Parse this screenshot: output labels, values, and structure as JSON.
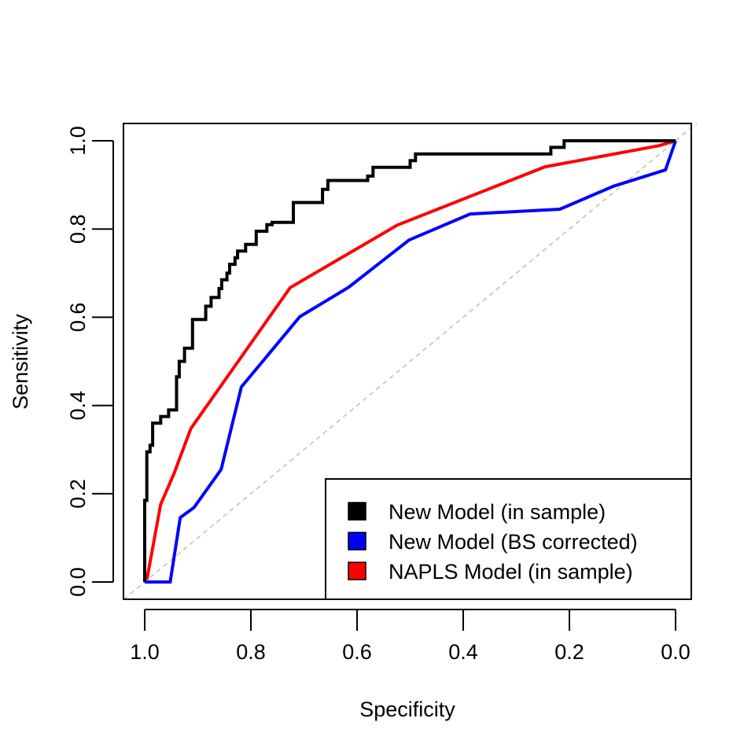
{
  "chart_data": {
    "type": "line",
    "title": "",
    "xlabel": "Specificity",
    "ylabel": "Sensitivity",
    "xlim": [
      1.0,
      0.0
    ],
    "ylim": [
      0.0,
      1.0
    ],
    "x_ticks": [
      "1.0",
      "0.8",
      "0.6",
      "0.4",
      "0.2",
      "0.0"
    ],
    "x_tick_values": [
      1.0,
      0.8,
      0.6,
      0.4,
      0.2,
      0.0
    ],
    "y_ticks": [
      "0.0",
      "0.2",
      "0.4",
      "0.6",
      "0.8",
      "1.0"
    ],
    "y_tick_values": [
      0.0,
      0.2,
      0.4,
      0.6,
      0.8,
      1.0
    ],
    "reference_line": {
      "from": [
        1.0,
        0.0
      ],
      "to": [
        0.0,
        1.0
      ],
      "color": "#bebebe",
      "style": "dashed"
    },
    "legend_position": "bottom-right",
    "series": [
      {
        "name": "New Model (in sample)",
        "color": "#000000",
        "step": true,
        "specificity": [
          1.0,
          1.0,
          0.996,
          0.996,
          0.99,
          0.99,
          0.985,
          0.985,
          0.97,
          0.97,
          0.955,
          0.955,
          0.94,
          0.94,
          0.935,
          0.935,
          0.925,
          0.925,
          0.91,
          0.91,
          0.885,
          0.885,
          0.875,
          0.875,
          0.86,
          0.86,
          0.855,
          0.855,
          0.845,
          0.845,
          0.84,
          0.84,
          0.83,
          0.83,
          0.825,
          0.825,
          0.81,
          0.81,
          0.79,
          0.79,
          0.77,
          0.77,
          0.76,
          0.76,
          0.72,
          0.72,
          0.665,
          0.665,
          0.655,
          0.655,
          0.58,
          0.58,
          0.57,
          0.57,
          0.5,
          0.5,
          0.49,
          0.49,
          0.235,
          0.235,
          0.21,
          0.21,
          0.18,
          0.18,
          0.0
        ],
        "sensitivity": [
          0.0,
          0.185,
          0.185,
          0.295,
          0.295,
          0.31,
          0.31,
          0.36,
          0.36,
          0.375,
          0.375,
          0.39,
          0.39,
          0.465,
          0.465,
          0.5,
          0.5,
          0.53,
          0.53,
          0.595,
          0.595,
          0.625,
          0.625,
          0.645,
          0.645,
          0.665,
          0.665,
          0.685,
          0.685,
          0.7,
          0.7,
          0.72,
          0.72,
          0.735,
          0.735,
          0.75,
          0.75,
          0.765,
          0.765,
          0.795,
          0.795,
          0.81,
          0.81,
          0.815,
          0.815,
          0.86,
          0.86,
          0.89,
          0.89,
          0.91,
          0.91,
          0.92,
          0.92,
          0.94,
          0.94,
          0.955,
          0.955,
          0.97,
          0.97,
          0.985,
          0.985,
          1.0,
          1.0,
          1.0,
          1.0
        ]
      },
      {
        "name": "New Model (BS corrected)",
        "color": "#0000ff",
        "step": false,
        "specificity": [
          1.0,
          0.952,
          0.933,
          0.907,
          0.856,
          0.818,
          0.708,
          0.616,
          0.502,
          0.387,
          0.218,
          0.117,
          0.019,
          0.0
        ],
        "sensitivity": [
          0.0,
          0.0,
          0.146,
          0.169,
          0.255,
          0.442,
          0.601,
          0.668,
          0.775,
          0.834,
          0.845,
          0.897,
          0.934,
          1.0
        ]
      },
      {
        "name": "NAPLS Model (in sample)",
        "color": "#ff0000",
        "step": false,
        "specificity": [
          0.996,
          0.97,
          0.945,
          0.913,
          0.726,
          0.524,
          0.246,
          0.031,
          0.0
        ],
        "sensitivity": [
          0.005,
          0.176,
          0.245,
          0.348,
          0.667,
          0.809,
          0.941,
          0.989,
          1.0
        ]
      }
    ]
  }
}
